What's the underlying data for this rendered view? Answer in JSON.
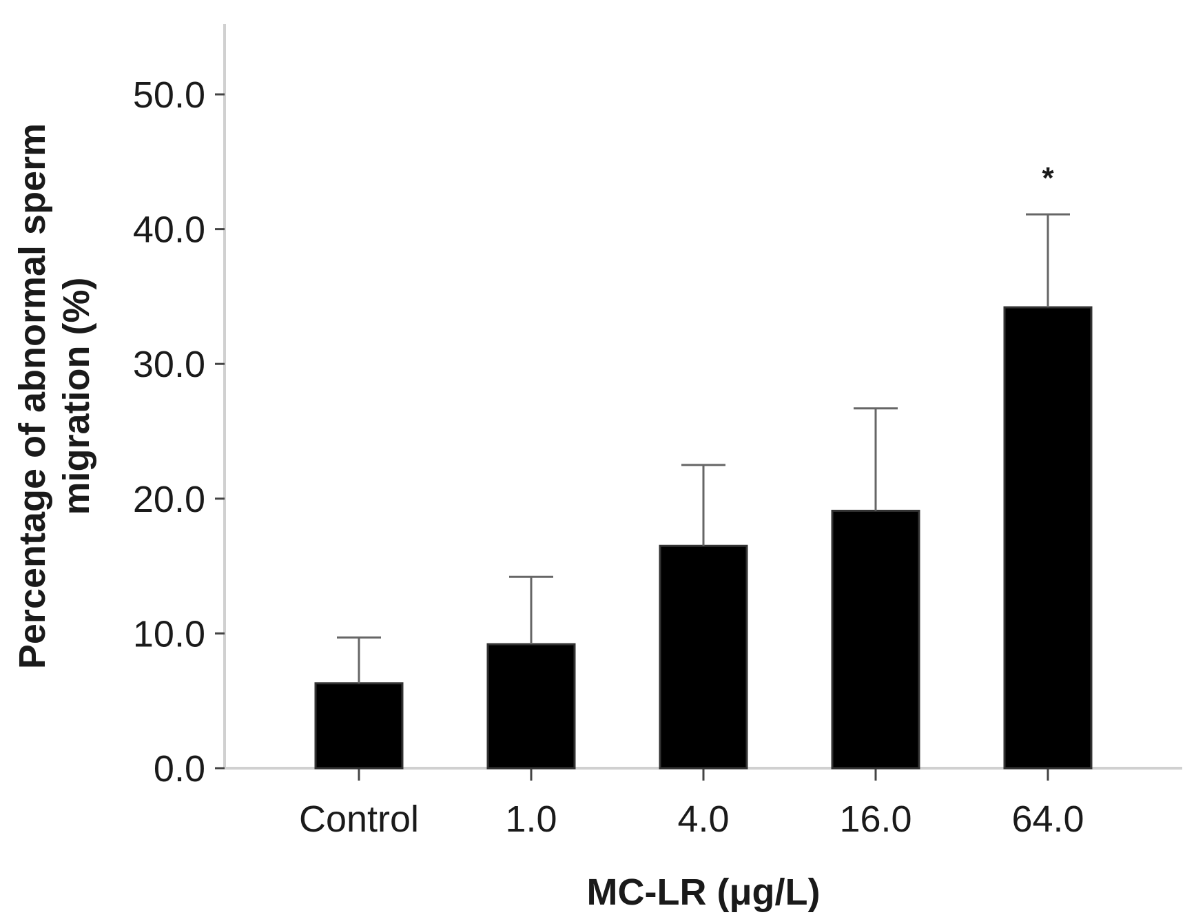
{
  "chart_data": {
    "type": "bar",
    "title": "",
    "xlabel": "MC-LR (μg/L)",
    "ylabel_lines": [
      "Percentage of abnormal sperm",
      "migration (%)"
    ],
    "categories": [
      "Control",
      "1.0",
      "4.0",
      "16.0",
      "64.0"
    ],
    "values": [
      6.3,
      9.2,
      16.5,
      19.1,
      34.2
    ],
    "error_upper": [
      9.7,
      14.2,
      22.5,
      26.7,
      41.1
    ],
    "annotations": [
      "",
      "",
      "",
      "",
      "*"
    ],
    "ylim": [
      0,
      55
    ],
    "yticks": [
      0,
      10,
      20,
      30,
      40,
      50
    ],
    "ytick_labels": [
      "0.0",
      "10.0",
      "20.0",
      "30.0",
      "40.0",
      "50.0"
    ],
    "grid": false,
    "colors": {
      "bar": "#000000",
      "axis": "#d0d0d0",
      "errorbar": "#666666",
      "text": "#1a1a1a"
    }
  }
}
